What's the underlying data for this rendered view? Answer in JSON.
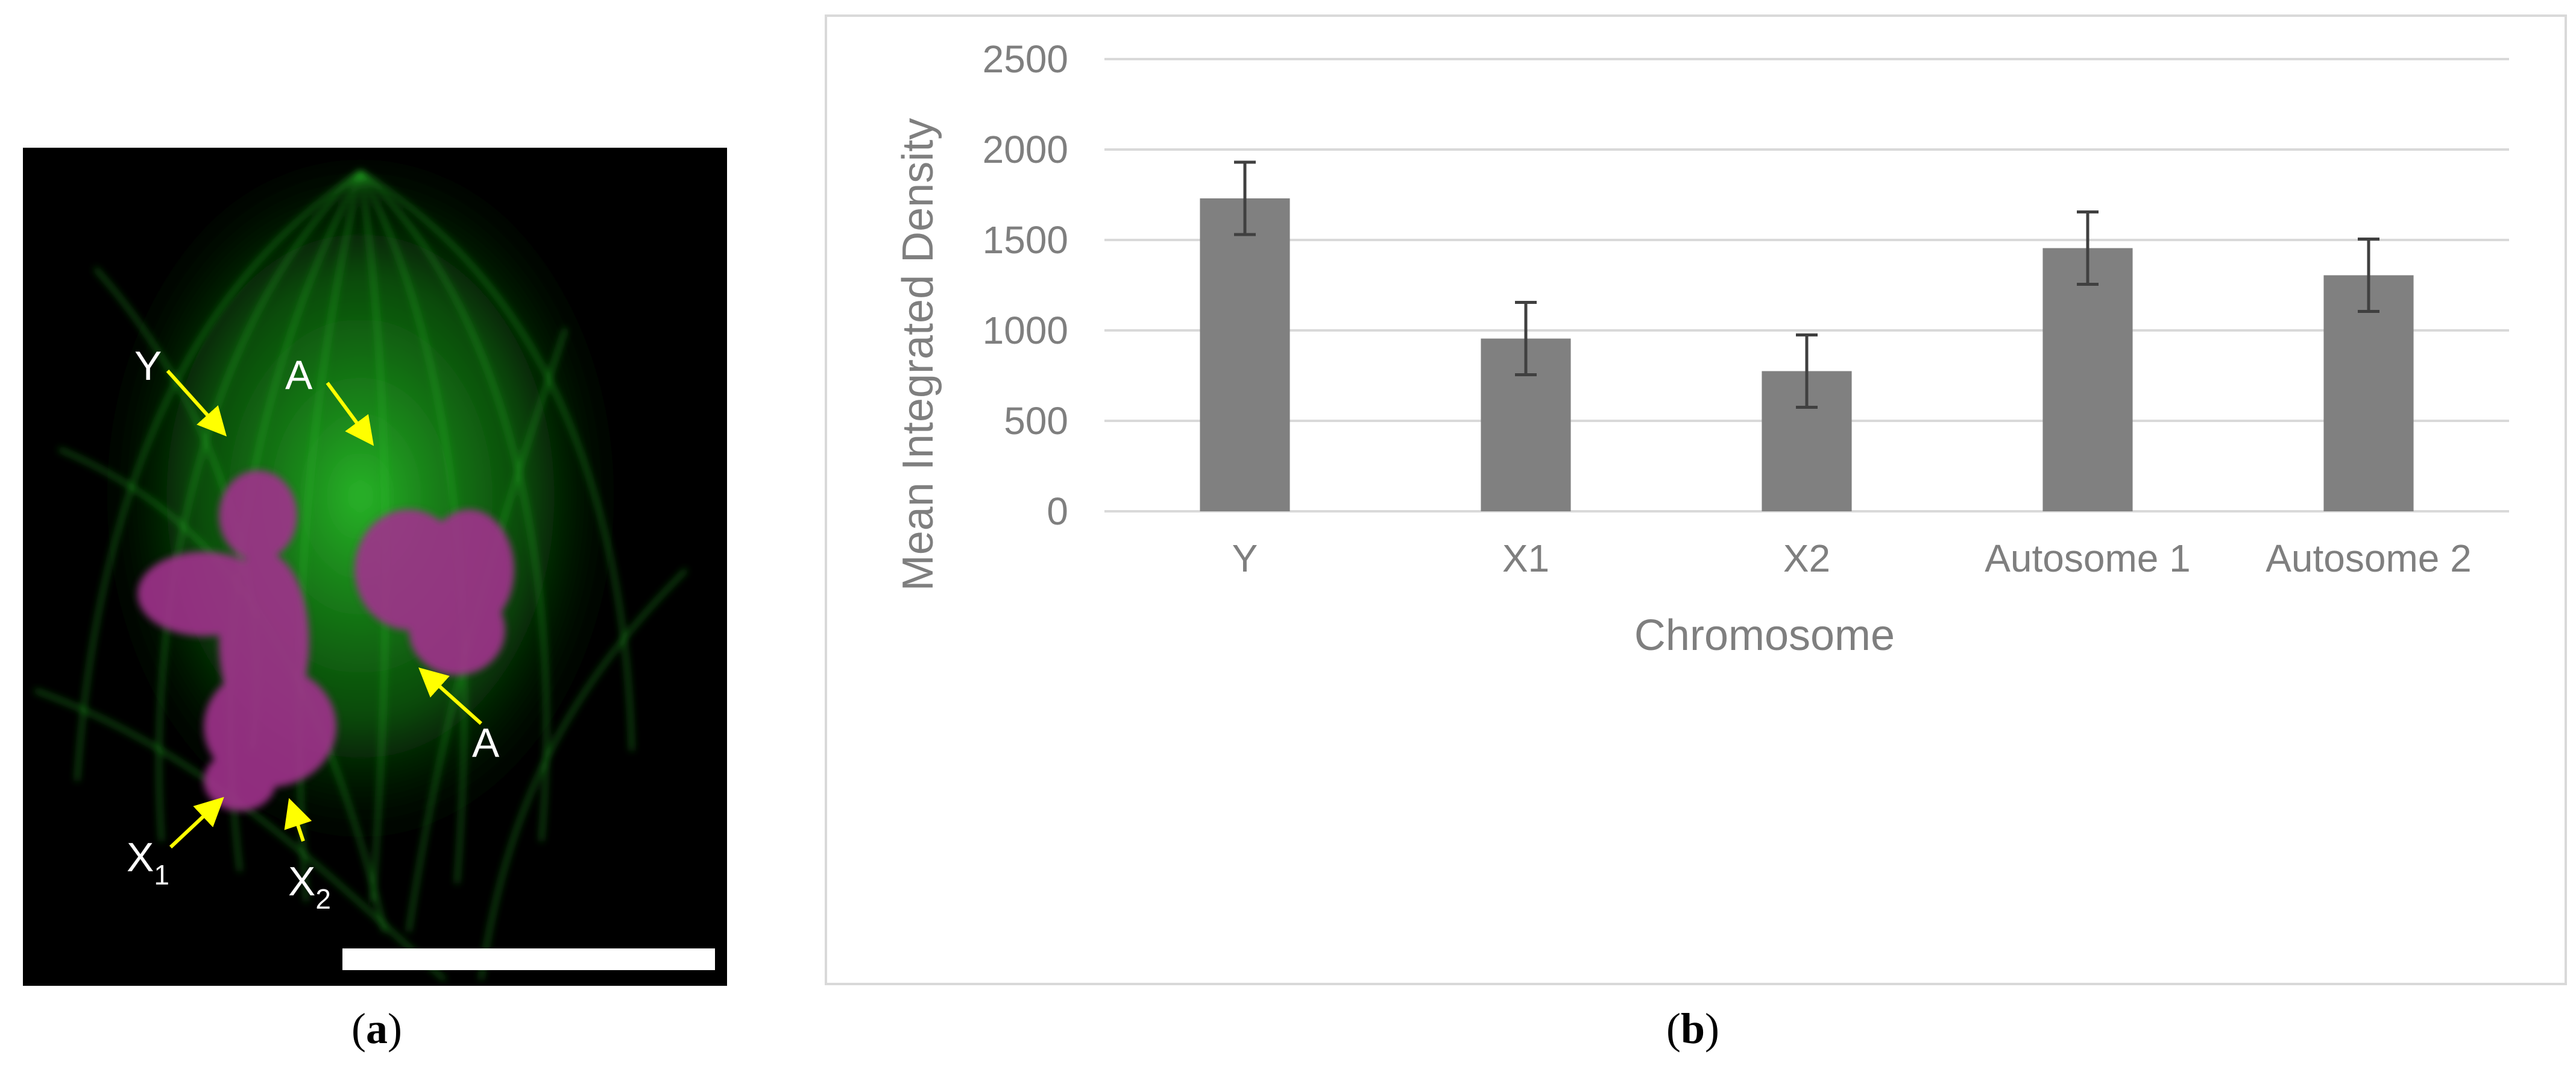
{
  "panel_a": {
    "caption": "a",
    "labels": {
      "y": "Y",
      "a_top": "A",
      "a_right": "A",
      "x1_main": "X",
      "x1_sub": "1",
      "x2_main": "X",
      "x2_sub": "2"
    },
    "colors": {
      "microtubules": "#1fbf1f",
      "chromosomes": "#a0328c",
      "arrows": "#ffff00",
      "scale_bar": "#ffffff"
    }
  },
  "panel_b": {
    "caption": "b"
  },
  "chart_data": {
    "type": "bar",
    "categories": [
      "Y",
      "X1",
      "X2",
      "Autosome 1",
      "Autosome 2"
    ],
    "values": [
      1730,
      955,
      775,
      1455,
      1305
    ],
    "errors": [
      200,
      200,
      200,
      200,
      200
    ],
    "xlabel": "Chromosome",
    "ylabel": "Mean Integrated Density",
    "ylim": [
      0,
      2500
    ],
    "yticks": [
      0,
      500,
      1000,
      1500,
      2000,
      2500
    ],
    "grid": true,
    "colors": {
      "bar": "#808080",
      "error_bar": "#404040",
      "grid": "#d9d9d9",
      "text": "#7f7f7f"
    }
  }
}
